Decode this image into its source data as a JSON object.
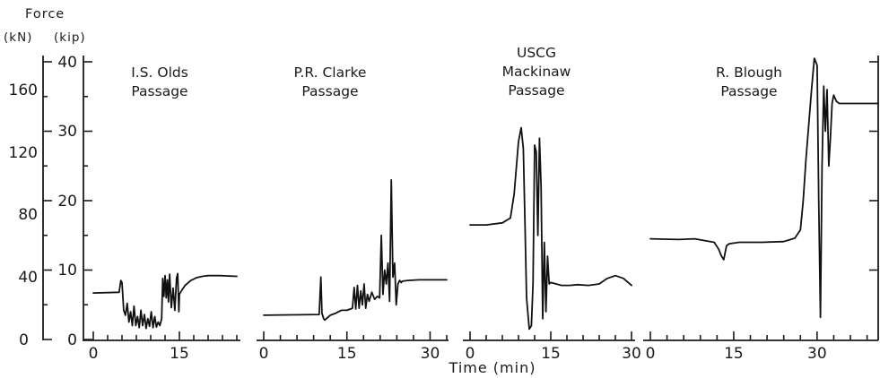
{
  "chart_data": {
    "type": "line",
    "ylabel": "Force",
    "y_units": [
      "(kN)",
      "(kip)"
    ],
    "xlabel": "Time (min)",
    "y_ticks_kN": [
      "0",
      "40",
      "80",
      "120",
      "160"
    ],
    "y_ticks_kip": [
      "0",
      "10",
      "20",
      "30",
      "40"
    ],
    "ylim_kip": [
      0,
      40
    ],
    "panels": [
      {
        "title_lines": [
          "I.S. Olds",
          "Passage"
        ],
        "xlim": [
          0,
          25
        ],
        "x_ticks": [
          0,
          15
        ],
        "x_tick_labels": [
          "0",
          "15"
        ],
        "x_minor_step": 2.5,
        "series": [
          {
            "x": [
              0,
              4.5,
              4.8,
              5.0,
              5.3,
              5.6,
              5.9,
              6.2,
              6.5,
              6.8,
              7.1,
              7.4,
              7.7,
              8.0,
              8.3,
              8.6,
              8.9,
              9.2,
              9.5,
              9.8,
              10.1,
              10.4,
              10.7,
              11.0,
              11.3,
              11.6,
              11.9,
              12.1,
              12.3,
              12.5,
              12.7,
              12.9,
              13.1,
              13.3,
              13.6,
              13.9,
              14.2,
              14.5,
              14.7,
              14.9,
              15.0,
              15.2,
              15.5,
              16.0,
              17.0,
              18.0,
              19.0,
              20.0,
              22.0,
              25.0
            ],
            "y": [
              6.7,
              6.8,
              8.5,
              8.2,
              4.2,
              3.5,
              5.2,
              2.5,
              4.0,
              2.0,
              4.8,
              2.0,
              3.3,
              1.7,
              4.2,
              2.0,
              3.6,
              1.6,
              3.0,
              1.9,
              4.0,
              1.7,
              3.3,
              1.8,
              2.5,
              2.0,
              3.0,
              8.8,
              6.2,
              9.2,
              6.0,
              8.6,
              5.4,
              9.4,
              4.6,
              7.4,
              4.2,
              8.8,
              9.5,
              4.0,
              6.5,
              6.8,
              7.2,
              7.8,
              8.5,
              8.9,
              9.1,
              9.2,
              9.2,
              9.1
            ]
          }
        ]
      },
      {
        "title_lines": [
          "P.R. Clarke",
          "Passage"
        ],
        "xlim": [
          0,
          33
        ],
        "x_ticks": [
          0,
          15,
          30
        ],
        "x_tick_labels": [
          "0",
          "15",
          "30"
        ],
        "x_minor_step": 3,
        "series": [
          {
            "x": [
              0,
              10.0,
              10.3,
              10.5,
              10.8,
              11.0,
              12.0,
              13.0,
              14.0,
              15.0,
              16.0,
              16.3,
              16.6,
              16.9,
              17.2,
              17.5,
              17.8,
              18.1,
              18.4,
              18.7,
              19.0,
              19.5,
              20.0,
              20.5,
              20.9,
              21.2,
              21.5,
              21.8,
              22.1,
              22.4,
              22.7,
              23.0,
              23.3,
              23.6,
              23.9,
              24.2,
              24.5,
              24.8,
              25.0,
              26.0,
              28.0,
              31.0,
              33.0
            ],
            "y": [
              3.5,
              3.6,
              9.0,
              3.8,
              3.0,
              2.8,
              3.5,
              3.8,
              4.2,
              4.2,
              4.5,
              7.5,
              4.4,
              7.8,
              4.5,
              7.0,
              5.0,
              8.0,
              4.5,
              6.5,
              5.5,
              6.8,
              5.8,
              6.2,
              6.0,
              15.0,
              6.5,
              10.0,
              8.0,
              11.0,
              5.5,
              23.0,
              9.0,
              11.0,
              5.0,
              8.0,
              8.5,
              8.2,
              8.4,
              8.5,
              8.6,
              8.6,
              8.6
            ]
          }
        ]
      },
      {
        "title_lines": [
          "USCG",
          "Mackinaw",
          "Passage"
        ],
        "xlim": [
          0,
          30
        ],
        "x_ticks": [
          0,
          15,
          30
        ],
        "x_tick_labels": [
          "0",
          "15",
          "30"
        ],
        "x_minor_step": 3,
        "series": [
          {
            "x": [
              0,
              3.0,
              6.0,
              7.5,
              8.2,
              9.0,
              9.5,
              9.9,
              10.2,
              10.5,
              11.0,
              11.4,
              11.7,
              12.0,
              12.3,
              12.6,
              12.9,
              13.2,
              13.5,
              13.8,
              14.1,
              14.4,
              14.7,
              15.0,
              16.0,
              17.0,
              18.5,
              20.0,
              22.0,
              24.0,
              25.5,
              27.0,
              28.5,
              30.0
            ],
            "y": [
              16.5,
              16.5,
              16.8,
              17.5,
              21.0,
              28.5,
              30.5,
              27.5,
              17.0,
              6.0,
              1.5,
              2.0,
              8.0,
              28.0,
              27.0,
              15.0,
              29.0,
              22.0,
              3.0,
              14.0,
              4.0,
              12.0,
              8.0,
              8.2,
              8.0,
              7.8,
              7.8,
              7.9,
              7.8,
              8.0,
              8.8,
              9.2,
              8.8,
              7.8
            ]
          }
        ]
      },
      {
        "title_lines": [
          "R. Blough",
          "Passage"
        ],
        "xlim": [
          0,
          41
        ],
        "x_ticks": [
          0,
          15,
          30
        ],
        "x_tick_labels": [
          "0",
          "15",
          "30"
        ],
        "x_minor_step": 3,
        "series": [
          {
            "x": [
              0,
              5.0,
              8.0,
              10.0,
              11.5,
              12.3,
              12.8,
              13.2,
              13.7,
              14.2,
              16.0,
              20.0,
              24.0,
              26.0,
              27.0,
              27.5,
              28.0,
              28.5,
              29.0,
              29.5,
              30.0,
              30.3,
              30.6,
              30.9,
              31.2,
              31.5,
              31.8,
              32.1,
              32.4,
              32.7,
              33.0,
              33.5,
              34.0,
              35.0,
              36.0,
              38.0,
              41.0
            ],
            "y": [
              14.5,
              14.4,
              14.5,
              14.2,
              14.0,
              13.0,
              12.0,
              11.5,
              13.5,
              13.8,
              14.0,
              14.0,
              14.1,
              14.6,
              15.8,
              20.0,
              26.0,
              31.0,
              36.0,
              40.5,
              39.5,
              20.0,
              3.2,
              25.0,
              36.5,
              30.0,
              36.0,
              25.0,
              29.0,
              34.0,
              35.2,
              34.3,
              34.0,
              34.0,
              34.0,
              34.0,
              34.0
            ]
          }
        ]
      }
    ]
  }
}
